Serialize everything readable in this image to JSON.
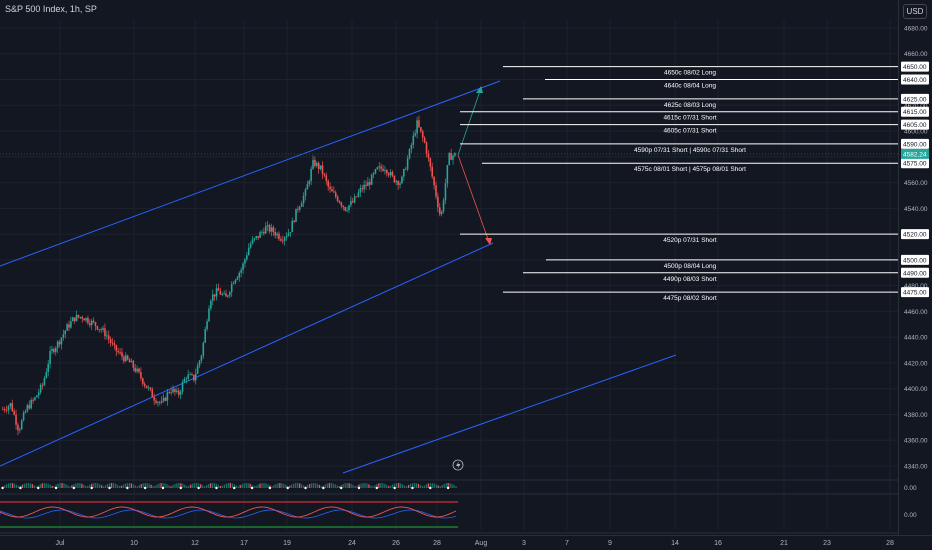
{
  "header": {
    "title": "S&P 500 Index, 1h, SP",
    "currency": "USD"
  },
  "colors": {
    "background": "#131722",
    "up": "#26a69a",
    "down": "#ef5350",
    "channel": "#2962ff",
    "level_line": "#ffffff",
    "price_badge": "#26a69a"
  },
  "chart_data": {
    "type": "candlestick",
    "y_axis": {
      "ticks": [
        4340,
        4360,
        4380,
        4400,
        4420,
        4440,
        4460,
        4480,
        4500,
        4520,
        4540,
        4560,
        4580,
        4600,
        4620,
        4640,
        4660,
        4680
      ],
      "ylim": [
        4331,
        4697
      ]
    },
    "x_axis": {
      "ticks": [
        "Jul",
        "10",
        "12",
        "17",
        "19",
        "24",
        "26",
        "28",
        "Aug",
        "3",
        "7",
        "9",
        "14",
        "16",
        "21",
        "23",
        "28"
      ]
    },
    "last_price": "4582.24",
    "price_path": [
      [
        4384,
        4388
      ],
      [
        4368,
        4385
      ],
      [
        4392,
        4403
      ],
      [
        4428,
        4436
      ],
      [
        4447,
        4455
      ],
      [
        4456,
        4452
      ],
      [
        4448,
        4442
      ],
      [
        4431,
        4425
      ],
      [
        4420,
        4412
      ],
      [
        4402,
        4393
      ],
      [
        4388,
        4400
      ],
      [
        4395,
        4410
      ],
      [
        4408,
        4428
      ],
      [
        4470,
        4476
      ],
      [
        4470,
        4485
      ],
      [
        4493,
        4512
      ],
      [
        4518,
        4525
      ],
      [
        4522,
        4517
      ],
      [
        4522,
        4540
      ],
      [
        4552,
        4576
      ],
      [
        4570,
        4554
      ],
      [
        4548,
        4540
      ],
      [
        4545,
        4555
      ],
      [
        4560,
        4570
      ],
      [
        4572,
        4563
      ],
      [
        4560,
        4582
      ],
      [
        4606,
        4590
      ],
      [
        4562,
        4532
      ],
      [
        4580,
        4582
      ]
    ],
    "levels": [
      {
        "price": 4650,
        "label": "4650c 08/02 Long"
      },
      {
        "price": 4640,
        "label": "4640c 08/04 Long"
      },
      {
        "price": 4625,
        "label": "4625c 08/03 Long"
      },
      {
        "price": 4615,
        "label": "4615c 07/31 Short"
      },
      {
        "price": 4605,
        "label": "4605c 07/31 Short"
      },
      {
        "price": 4590,
        "label": "4590p 07/31 Short | 4590c 07/31 Short"
      },
      {
        "price": 4575,
        "label": "4575c 08/01 Short | 4575p 08/01 Short"
      },
      {
        "price": 4520,
        "label": "4520p 07/31 Short"
      },
      {
        "price": 4500,
        "label": "4500p 08/04 Long"
      },
      {
        "price": 4490,
        "label": "4490p 08/03 Short"
      },
      {
        "price": 4475,
        "label": "4475p 08/02 Short"
      }
    ],
    "level_badges": [
      "4650.00",
      "4640.00",
      "4625.00",
      "4615.00",
      "4605.00",
      "4590.00",
      "4575.00",
      "4520.00",
      "4500.00",
      "4490.00",
      "4475.00"
    ],
    "indicator_values": [
      "0.00",
      "0.00"
    ],
    "grid": true
  }
}
